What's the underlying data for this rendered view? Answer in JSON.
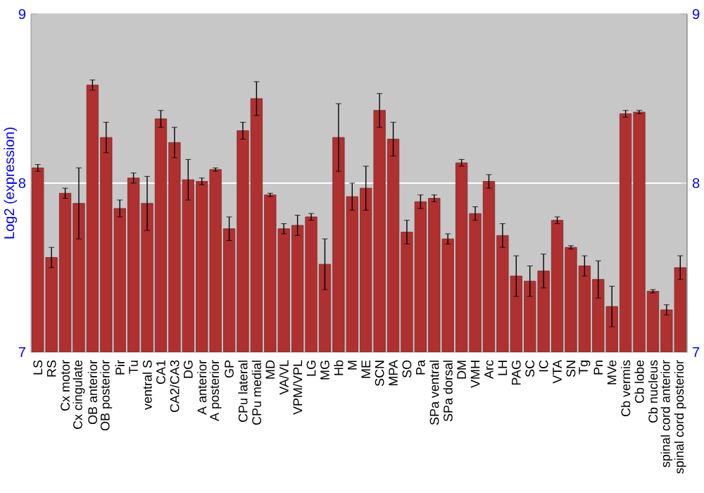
{
  "chart_data": {
    "type": "bar",
    "ylabel": "Log2 (expression)",
    "categories": [
      "LS",
      "RS",
      "Cx motor",
      "Cx cingulate",
      "OB anterior",
      "OB posterior",
      "Pir",
      "Tu",
      "ventral S",
      "CA1",
      "CA2/CA3",
      "DG",
      "A anterior",
      "A posterior",
      "GP",
      "CPu lateral",
      "CPu medial",
      "MD",
      "VA/VL",
      "VPM/VPL",
      "LG",
      "MG",
      "Hb",
      "M",
      "ME",
      "SCN",
      "MPA",
      "SO",
      "Pa",
      "SPa ventral",
      "SPa dorsal",
      "DM",
      "VMH",
      "Arc",
      "LH",
      "PAG",
      "SC",
      "IC",
      "VTA",
      "SN",
      "Tg",
      "Pn",
      "MVe",
      "Cb vermis",
      "Cb lobe",
      "Cb nucleus",
      "spinal cord anterior",
      "spinal cord posterior"
    ],
    "values": [
      8.09,
      7.56,
      7.94,
      7.88,
      8.58,
      8.27,
      7.85,
      8.03,
      7.88,
      8.38,
      8.24,
      8.02,
      8.01,
      8.08,
      7.73,
      8.31,
      8.5,
      7.93,
      7.73,
      7.75,
      7.8,
      7.52,
      8.27,
      7.92,
      7.97,
      8.43,
      8.26,
      7.71,
      7.89,
      7.91,
      7.67,
      8.12,
      7.82,
      8.01,
      7.69,
      7.45,
      7.42,
      7.48,
      7.78,
      7.62,
      7.51,
      7.43,
      7.27,
      8.41,
      8.42,
      7.36,
      7.25,
      7.5
    ],
    "errors": [
      0.02,
      0.06,
      0.03,
      0.21,
      0.03,
      0.09,
      0.05,
      0.03,
      0.16,
      0.05,
      0.09,
      0.12,
      0.02,
      0.01,
      0.07,
      0.05,
      0.1,
      0.01,
      0.03,
      0.06,
      0.02,
      0.15,
      0.2,
      0.08,
      0.13,
      0.1,
      0.1,
      0.07,
      0.04,
      0.02,
      0.03,
      0.02,
      0.04,
      0.04,
      0.07,
      0.12,
      0.09,
      0.1,
      0.02,
      0.01,
      0.06,
      0.11,
      0.12,
      0.02,
      0.01,
      0.01,
      0.03,
      0.07
    ],
    "color": "#b03030",
    "ylim": [
      7,
      9
    ],
    "yticks": [
      7,
      8,
      9
    ],
    "y2lim": [
      7,
      9
    ],
    "y2ticks": [
      7,
      8,
      9
    ],
    "grid": "y"
  }
}
